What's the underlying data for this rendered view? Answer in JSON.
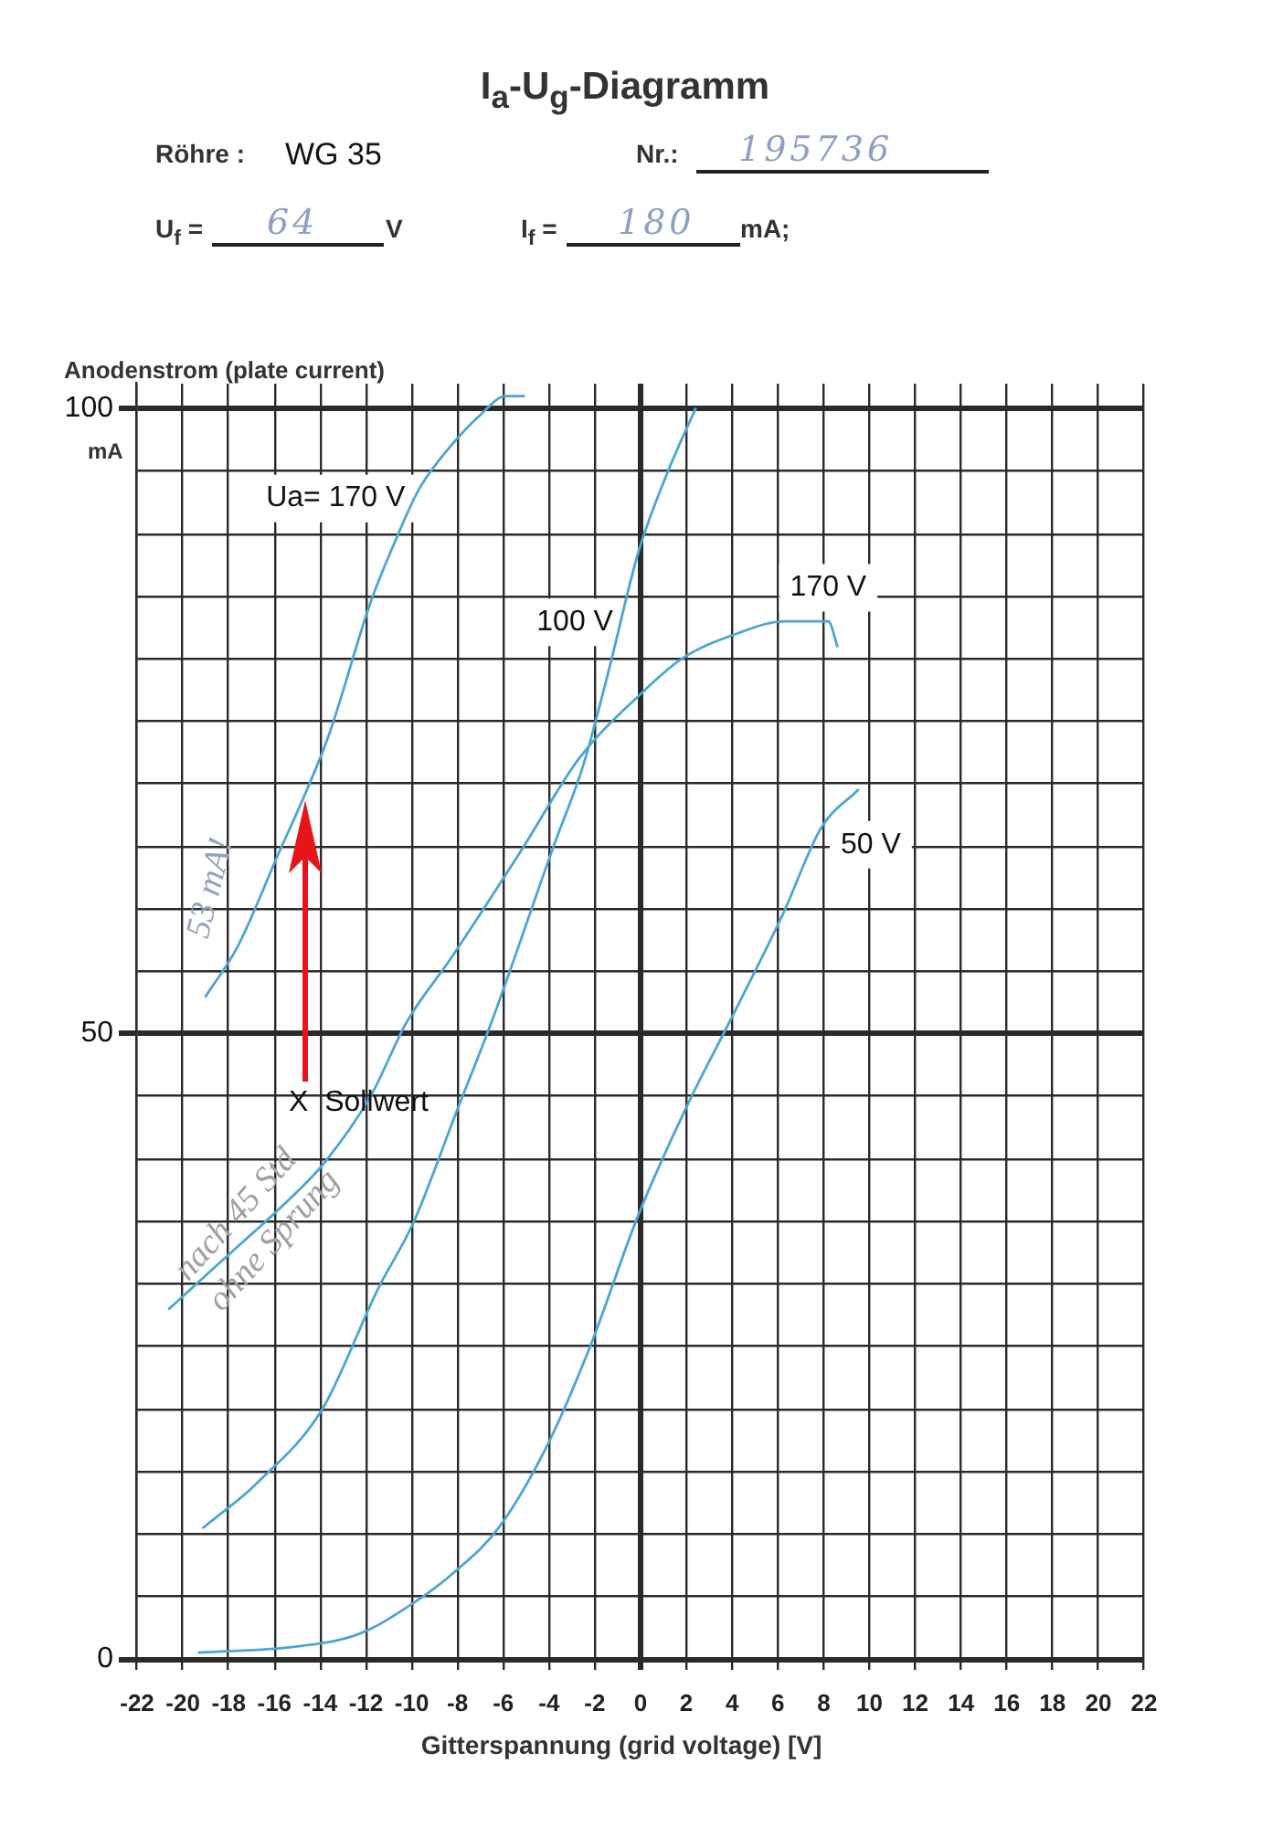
{
  "chart_data": {
    "type": "line",
    "title": "I$_{a}$-U$_{g}$-Diagramm",
    "xlabel": "Gitterspannung (grid voltage) [V]",
    "ylabel": "Anodenstrom (plate current)",
    "annotations": [
      "Röhre :",
      "WG 35",
      "Nr.:",
      "195736",
      "U$_{f}$ =",
      "64",
      "V",
      "I$_{f}$ =",
      "180",
      "mA;",
      "mA",
      "53 mA!",
      "nach 45 Std\nohne Sprung",
      "X  Sollwert"
    ],
    "series": [
      {
        "name": "Ua= 170 V",
        "color": "#4ba5d5",
        "x": [
          -19,
          -17.6,
          -15.8,
          -14.7,
          -13.6,
          -11.8,
          -10.7,
          -9.7,
          -8.3,
          -7,
          -5.9,
          -5.1
        ],
        "values": [
          53,
          57,
          64.5,
          69,
          74,
          84.5,
          89.5,
          93.5,
          97,
          99.5,
          101,
          101
        ]
      },
      {
        "name": "100 V",
        "color": "#4ba5d5",
        "x": [
          -19.1,
          -16.8,
          -13.9,
          -11.5,
          -9.9,
          -8.1,
          -6.5,
          -3.8,
          -2.5,
          -1.4,
          -0.1,
          1.2,
          2.4
        ],
        "values": [
          10.5,
          14,
          20,
          29.5,
          35,
          43.5,
          51,
          65,
          71.5,
          79,
          88.5,
          95,
          100
        ]
      },
      {
        "name": "170 V",
        "color": "#4ba5d5",
        "x": [
          -20.6,
          -18.2,
          -15.5,
          -13.9,
          -11.8,
          -10.2,
          -8.3,
          -5.1,
          -2.7,
          -0.1,
          1.8,
          4.2,
          6.3,
          8.2,
          8.6
        ],
        "values": [
          28,
          32,
          36.5,
          39.5,
          45,
          51,
          56,
          65,
          72,
          77,
          80,
          82,
          83,
          83,
          81
        ]
      },
      {
        "name": "50 V",
        "color": "#4ba5d5",
        "x": [
          -19.3,
          -15,
          -12.3,
          -9.9,
          -8.1,
          -6.2,
          -4.1,
          -2.2,
          -0.1,
          2.1,
          3.9,
          6.2,
          7.9,
          9.5
        ],
        "values": [
          0.5,
          1,
          2,
          4.5,
          7,
          10.5,
          17,
          25,
          35.5,
          44.5,
          51,
          59.5,
          66.5,
          69.5
        ]
      }
    ],
    "xlim": [
      -22,
      22
    ],
    "ylim": [
      0,
      102
    ],
    "xticks": [
      -22,
      -20,
      -18,
      -16,
      -14,
      -12,
      -10,
      -8,
      -6,
      -4,
      -2,
      0,
      2,
      4,
      6,
      8,
      10,
      12,
      14,
      16,
      18,
      20,
      22
    ],
    "yticks": [
      0,
      {
        "value": 5,
        "label": null
      },
      {
        "value": 10,
        "label": null
      },
      {
        "value": 15,
        "label": null
      },
      {
        "value": 20,
        "label": null
      },
      {
        "value": 25,
        "label": null
      },
      {
        "value": 30,
        "label": null
      },
      {
        "value": 35,
        "label": null
      },
      {
        "value": 40,
        "label": null
      },
      {
        "value": 45,
        "label": null
      },
      50,
      {
        "value": 55,
        "label": null
      },
      {
        "value": 60,
        "label": null
      },
      {
        "value": 65,
        "label": null
      },
      {
        "value": 70,
        "label": null
      },
      {
        "value": 75,
        "label": null
      },
      {
        "value": 80,
        "label": null
      },
      {
        "value": 85,
        "label": null
      },
      {
        "value": 90,
        "label": null
      },
      {
        "value": 95,
        "label": null
      },
      100
    ],
    "grid": true,
    "line_style": "solid"
  }
}
